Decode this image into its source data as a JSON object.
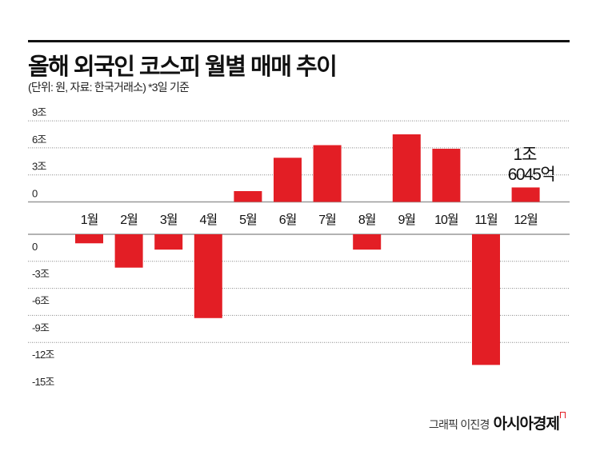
{
  "title": "올해 외국인 코스피 월별 매매 추이",
  "subtitle": "(단위: 원, 자료: 한국거래소) *3일 기준",
  "credit": {
    "author": "그래픽 이진경",
    "brand": "아시아경제"
  },
  "chart_data": {
    "type": "bar",
    "title": "올해 외국인 코스피 월별 매매 추이",
    "categories": [
      "1월",
      "2월",
      "3월",
      "4월",
      "5월",
      "6월",
      "7월",
      "8월",
      "9월",
      "10월",
      "11월",
      "12월"
    ],
    "values": [
      -1.0,
      -3.7,
      -1.7,
      -9.3,
      1.2,
      4.9,
      6.3,
      -1.7,
      7.5,
      5.9,
      -14.5,
      1.6045
    ],
    "unit": "조 원",
    "bar_color": "#e31e25",
    "positive_axis": {
      "ylim": [
        0,
        9
      ],
      "ticks": [
        "9조",
        "6조",
        "3조",
        "0"
      ]
    },
    "negative_axis": {
      "ylim": [
        -15,
        0
      ],
      "ticks": [
        "0",
        "-3조",
        "-6조",
        "-9조",
        "-12조",
        "-15조"
      ]
    },
    "grid": true,
    "annotation": {
      "line1": "1조",
      "line2": "6045억"
    }
  }
}
